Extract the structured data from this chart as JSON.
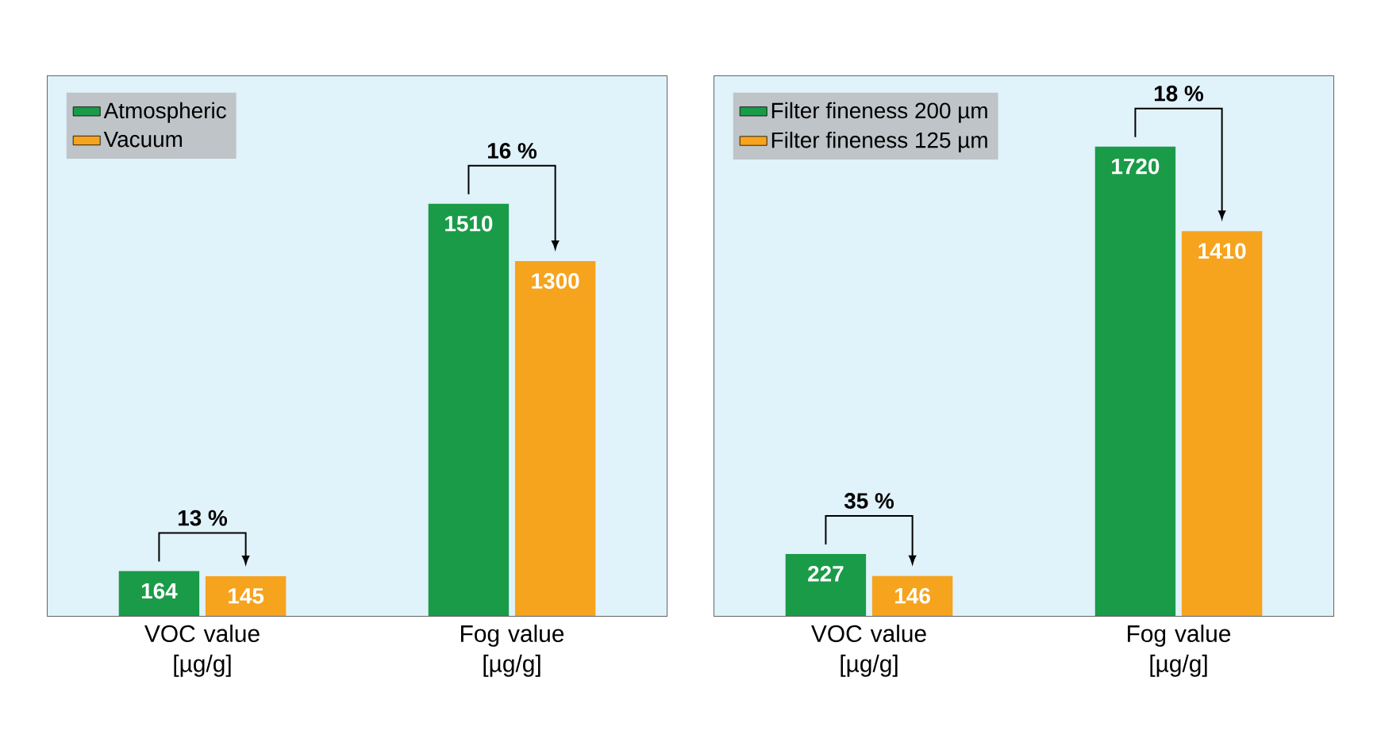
{
  "chart_data": [
    {
      "type": "bar",
      "categories": [
        "VOC value [µg/g]",
        "Fog value [µg/g]"
      ],
      "series": [
        {
          "name": "Atmospheric",
          "color": "#1a9b48",
          "values": [
            164,
            1510
          ]
        },
        {
          "name": "Vacuum",
          "color": "#f6a31e",
          "values": [
            145,
            1300
          ]
        }
      ],
      "data_labels": true,
      "legend": "top left",
      "annotations": [
        "13 %",
        "16 %"
      ]
    },
    {
      "type": "bar",
      "categories": [
        "VOC value [µg/g]",
        "Fog value [µg/g]"
      ],
      "series": [
        {
          "name": "Filter fineness 200 µm",
          "color": "#1a9b48",
          "values": [
            227,
            1720
          ]
        },
        {
          "name": "Filter fineness 125 µm",
          "color": "#f6a31e",
          "values": [
            146,
            1410
          ]
        }
      ],
      "data_labels": true,
      "legend": "top left",
      "annotations": [
        "35 %",
        "18 %"
      ]
    }
  ]
}
